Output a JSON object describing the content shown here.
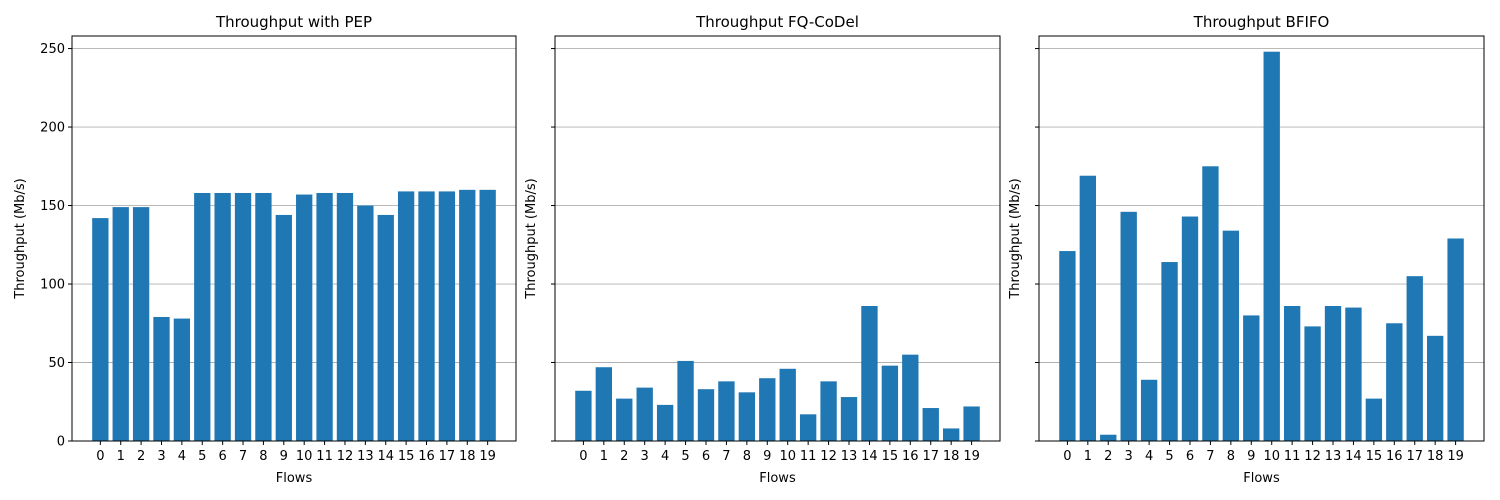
{
  "chart_data": [
    {
      "type": "bar",
      "title": "Throughput with PEP",
      "xlabel": "Flows",
      "ylabel": "Throughput (Mb/s)",
      "categories": [
        "0",
        "1",
        "2",
        "3",
        "4",
        "5",
        "6",
        "7",
        "8",
        "9",
        "10",
        "11",
        "12",
        "13",
        "14",
        "15",
        "16",
        "17",
        "18",
        "19"
      ],
      "values": [
        142,
        149,
        149,
        79,
        78,
        158,
        158,
        158,
        158,
        144,
        157,
        158,
        158,
        150,
        144,
        159,
        159,
        159,
        160,
        160
      ],
      "ylim": [
        0,
        258
      ],
      "yticks": [
        0,
        50,
        100,
        150,
        200,
        250
      ],
      "ytick_labels_visible": true,
      "grid": "y",
      "color": "#1f77b4"
    },
    {
      "type": "bar",
      "title": "Throughput FQ-CoDel",
      "xlabel": "Flows",
      "ylabel": "Throughput (Mb/s)",
      "categories": [
        "0",
        "1",
        "2",
        "3",
        "4",
        "5",
        "6",
        "7",
        "8",
        "9",
        "10",
        "11",
        "12",
        "13",
        "14",
        "15",
        "16",
        "17",
        "18",
        "19"
      ],
      "values": [
        32,
        47,
        27,
        34,
        23,
        51,
        33,
        38,
        31,
        40,
        46,
        17,
        38,
        28,
        86,
        48,
        55,
        21,
        8,
        22
      ],
      "ylim": [
        0,
        258
      ],
      "yticks": [
        0,
        50,
        100,
        150,
        200,
        250
      ],
      "ytick_labels_visible": false,
      "grid": "y",
      "color": "#1f77b4"
    },
    {
      "type": "bar",
      "title": "Throughput BFIFO",
      "xlabel": "Flows",
      "ylabel": "Throughput (Mb/s)",
      "categories": [
        "0",
        "1",
        "2",
        "3",
        "4",
        "5",
        "6",
        "7",
        "8",
        "9",
        "10",
        "11",
        "12",
        "13",
        "14",
        "15",
        "16",
        "17",
        "18",
        "19"
      ],
      "values": [
        121,
        169,
        4,
        146,
        39,
        114,
        143,
        175,
        134,
        80,
        248,
        86,
        73,
        86,
        85,
        27,
        75,
        105,
        67,
        129
      ],
      "ylim": [
        0,
        258
      ],
      "yticks": [
        0,
        50,
        100,
        150,
        200,
        250
      ],
      "ytick_labels_visible": false,
      "grid": "y",
      "color": "#1f77b4"
    }
  ]
}
